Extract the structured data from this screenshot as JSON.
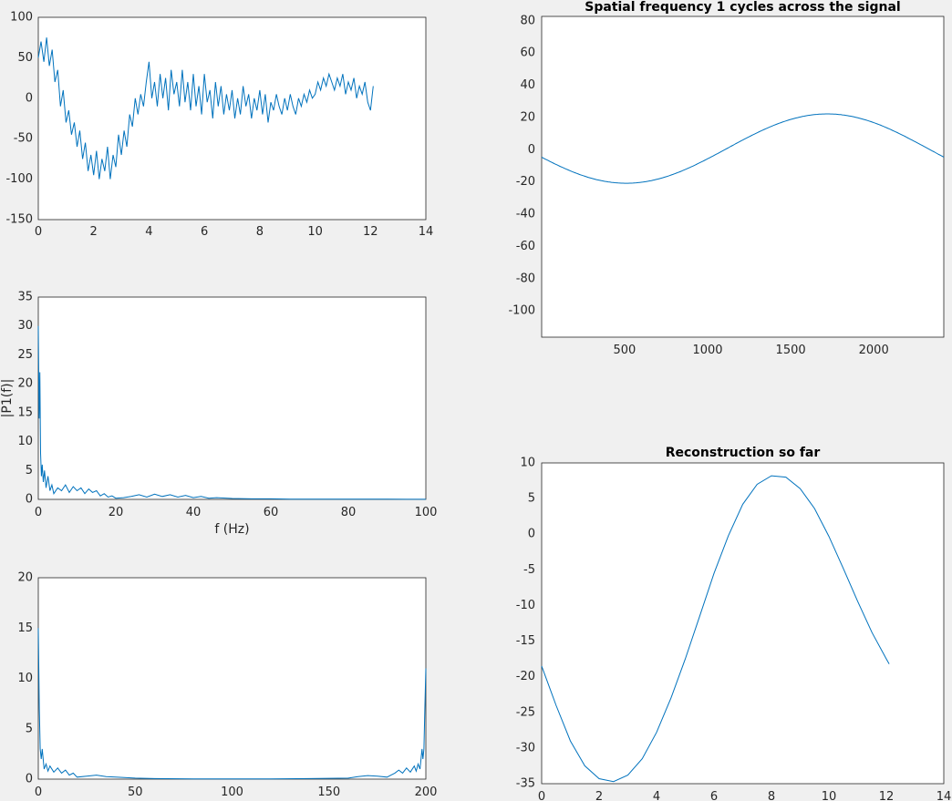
{
  "figure": {
    "background": "#f0f0f0",
    "axes_color": "#262626",
    "line_color": "#0072bd"
  },
  "chart_data": [
    {
      "id": "signal",
      "type": "line",
      "title": "",
      "xlabel": "",
      "ylabel": "",
      "xlim": [
        0,
        14
      ],
      "ylim": [
        -150,
        100
      ],
      "xticks": [
        0,
        2,
        4,
        6,
        8,
        10,
        12,
        14
      ],
      "yticks": [
        -150,
        -100,
        -50,
        0,
        50,
        100
      ],
      "series": [
        {
          "x": [
            0,
            0.1,
            0.2,
            0.3,
            0.4,
            0.5,
            0.6,
            0.7,
            0.8,
            0.9,
            1.0,
            1.1,
            1.2,
            1.3,
            1.4,
            1.5,
            1.6,
            1.7,
            1.8,
            1.9,
            2.0,
            2.1,
            2.2,
            2.3,
            2.4,
            2.5,
            2.6,
            2.7,
            2.8,
            2.9,
            3.0,
            3.1,
            3.2,
            3.3,
            3.4,
            3.5,
            3.6,
            3.7,
            3.8,
            3.9,
            4.0,
            4.1,
            4.2,
            4.3,
            4.4,
            4.5,
            4.6,
            4.7,
            4.8,
            4.9,
            5.0,
            5.1,
            5.2,
            5.3,
            5.4,
            5.5,
            5.6,
            5.7,
            5.8,
            5.9,
            6.0,
            6.1,
            6.2,
            6.3,
            6.4,
            6.5,
            6.6,
            6.7,
            6.8,
            6.9,
            7.0,
            7.1,
            7.2,
            7.3,
            7.4,
            7.5,
            7.6,
            7.7,
            7.8,
            7.9,
            8.0,
            8.1,
            8.2,
            8.3,
            8.4,
            8.5,
            8.6,
            8.7,
            8.8,
            8.9,
            9.0,
            9.1,
            9.2,
            9.3,
            9.4,
            9.5,
            9.6,
            9.7,
            9.8,
            9.9,
            10.0,
            10.1,
            10.2,
            10.3,
            10.4,
            10.5,
            10.6,
            10.7,
            10.8,
            10.9,
            11.0,
            11.1,
            11.2,
            11.3,
            11.4,
            11.5,
            11.6,
            11.7,
            11.8,
            11.9,
            12.0,
            12.1
          ],
          "y": [
            50,
            70,
            45,
            75,
            40,
            60,
            20,
            35,
            -10,
            10,
            -30,
            -15,
            -45,
            -30,
            -60,
            -40,
            -75,
            -55,
            -90,
            -70,
            -95,
            -65,
            -100,
            -75,
            -90,
            -60,
            -100,
            -70,
            -85,
            -45,
            -70,
            -40,
            -60,
            -20,
            -35,
            0,
            -20,
            5,
            -10,
            20,
            45,
            0,
            20,
            -10,
            30,
            0,
            25,
            -15,
            35,
            5,
            20,
            -10,
            35,
            -5,
            20,
            -15,
            30,
            -10,
            15,
            -20,
            30,
            -5,
            10,
            -25,
            20,
            -10,
            15,
            -20,
            5,
            -15,
            10,
            -25,
            0,
            -20,
            15,
            -10,
            5,
            -25,
            0,
            -15,
            10,
            -20,
            5,
            -30,
            -5,
            -15,
            5,
            -10,
            -20,
            0,
            -15,
            5,
            -10,
            -20,
            0,
            -10,
            5,
            -5,
            10,
            0,
            5,
            20,
            10,
            25,
            15,
            30,
            20,
            10,
            25,
            15,
            30,
            5,
            20,
            10,
            25,
            0,
            15,
            5,
            20,
            -5,
            -15,
            15
          ]
        }
      ]
    },
    {
      "id": "spectrum-one-sided",
      "type": "line",
      "title": "",
      "xlabel": "f (Hz)",
      "ylabel": "|P1(f)|",
      "xlim": [
        0,
        100
      ],
      "ylim": [
        0,
        35
      ],
      "xticks": [
        0,
        20,
        40,
        60,
        80,
        100
      ],
      "yticks": [
        0,
        5,
        10,
        15,
        20,
        25,
        30,
        35
      ],
      "series": [
        {
          "x": [
            0,
            0.2,
            0.4,
            0.6,
            0.8,
            1.0,
            1.3,
            1.6,
            2.0,
            2.5,
            3.0,
            3.5,
            4.0,
            5.0,
            6.0,
            7.0,
            8.0,
            9.0,
            10.0,
            11.0,
            12.0,
            13.0,
            14.0,
            15.0,
            16.0,
            17.0,
            18.0,
            19.0,
            20.0,
            22.0,
            24.0,
            26.0,
            28.0,
            30.0,
            32.0,
            34.0,
            36.0,
            38.0,
            40.0,
            42.0,
            44.0,
            46.0,
            50.0,
            55.0,
            60.0,
            65.0,
            70.0,
            75.0,
            80.0,
            85.0,
            90.0,
            95.0,
            100.0
          ],
          "y": [
            30,
            14,
            22,
            8,
            4,
            6,
            3,
            5,
            2,
            4,
            1.5,
            2.5,
            1.0,
            2.0,
            1.5,
            2.5,
            1.2,
            2.2,
            1.5,
            2.0,
            1.0,
            1.8,
            1.2,
            1.5,
            0.6,
            1.0,
            0.4,
            0.6,
            0.2,
            0.3,
            0.5,
            0.8,
            0.4,
            0.9,
            0.5,
            0.8,
            0.4,
            0.7,
            0.3,
            0.5,
            0.2,
            0.3,
            0.15,
            0.1,
            0.1,
            0.05,
            0.05,
            0.05,
            0.03,
            0.03,
            0.03,
            0.02,
            0.02
          ]
        }
      ]
    },
    {
      "id": "spectrum-two-sided",
      "type": "line",
      "title": "",
      "xlabel": "",
      "ylabel": "",
      "xlim": [
        0,
        200
      ],
      "ylim": [
        0,
        20
      ],
      "xticks": [
        0,
        50,
        100,
        150,
        200
      ],
      "yticks": [
        0,
        5,
        10,
        15,
        20
      ],
      "series": [
        {
          "x": [
            0,
            0.5,
            1.0,
            1.5,
            2.0,
            3.0,
            4.0,
            5.0,
            6.0,
            8.0,
            10.0,
            12.0,
            14.0,
            16.0,
            18.0,
            20.0,
            25.0,
            30.0,
            35.0,
            40.0,
            50.0,
            60.0,
            80.0,
            100.0,
            120.0,
            140.0,
            160.0,
            165.0,
            170.0,
            175.0,
            180.0,
            182.0,
            184.0,
            186.0,
            188.0,
            190.0,
            192.0,
            194.0,
            195.0,
            196.0,
            197.0,
            198.0,
            198.5,
            199.0,
            199.5,
            200.0
          ],
          "y": [
            15,
            7,
            3,
            2,
            3,
            1,
            1.5,
            0.8,
            1.3,
            0.7,
            1.1,
            0.6,
            0.9,
            0.4,
            0.6,
            0.2,
            0.3,
            0.4,
            0.25,
            0.2,
            0.1,
            0.05,
            0.03,
            0.02,
            0.03,
            0.05,
            0.1,
            0.25,
            0.35,
            0.3,
            0.2,
            0.4,
            0.6,
            0.9,
            0.6,
            1.1,
            0.7,
            1.3,
            0.8,
            1.5,
            1.0,
            3.0,
            2.0,
            3.0,
            7.0,
            11.0
          ]
        }
      ]
    },
    {
      "id": "spatial-frequency",
      "type": "line",
      "title": "Spatial frequency 1 cycles across the signal",
      "xlabel": "",
      "ylabel": "",
      "xlim": [
        1,
        2421
      ],
      "ylim": [
        -117,
        82
      ],
      "xticks": [
        500,
        1000,
        1500,
        2000
      ],
      "yticks": [
        -100,
        -80,
        -60,
        -40,
        -20,
        0,
        20,
        40,
        60,
        80
      ],
      "sine": {
        "amplitude": 21.5,
        "period_samples": 2421,
        "phase_start_value": -5,
        "minimum_at": 510,
        "maximum_at": 1720
      }
    },
    {
      "id": "reconstruction",
      "type": "line",
      "title": "Reconstruction so far",
      "xlabel": "",
      "ylabel": "",
      "xlim": [
        0,
        14
      ],
      "ylim": [
        -35,
        10
      ],
      "xticks": [
        0,
        2,
        4,
        6,
        8,
        10,
        12,
        14
      ],
      "yticks": [
        -35,
        -30,
        -25,
        -20,
        -15,
        -10,
        -5,
        0,
        5,
        10
      ],
      "series": [
        {
          "x": [
            0,
            0.5,
            1.0,
            1.5,
            2.0,
            2.5,
            3.0,
            3.5,
            4.0,
            4.5,
            5.0,
            5.5,
            6.0,
            6.5,
            7.0,
            7.5,
            8.0,
            8.5,
            9.0,
            9.5,
            10.0,
            10.5,
            11.0,
            11.5,
            12.0,
            12.1
          ],
          "y": [
            -18.5,
            -24,
            -29,
            -32.5,
            -34.3,
            -34.7,
            -33.8,
            -31.5,
            -27.8,
            -23,
            -17.5,
            -11.5,
            -5.5,
            -0.2,
            4.2,
            7.0,
            8.2,
            8.0,
            6.4,
            3.6,
            -0.3,
            -4.8,
            -9.4,
            -13.8,
            -17.5,
            -18.2
          ]
        }
      ]
    }
  ]
}
